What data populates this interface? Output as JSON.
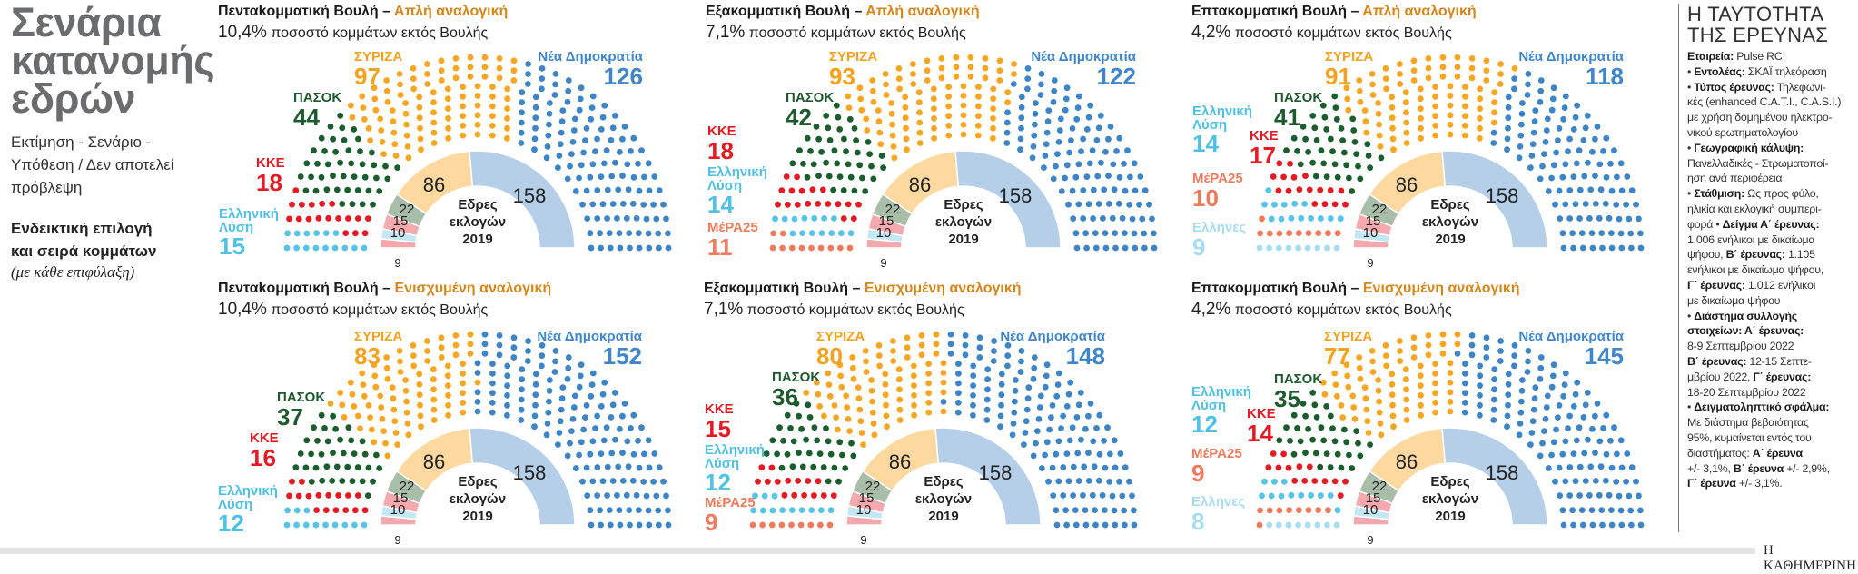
{
  "intro": {
    "title_lines": [
      "Σενάρια",
      "κατανομής",
      "εδρών"
    ],
    "disclaimer_lines": [
      "Εκτίμηση - Σενάριο -",
      "Υπόθεση / Δεν αποτελεί",
      "πρόβλεψη"
    ],
    "note_lines": [
      "Ενδεικτική επιλογή",
      "και σειρά κομμάτων"
    ],
    "caveat": "(με κάθε επιφύλαξη)"
  },
  "party_colors": {
    "ellines": "#a8dcf1",
    "mera25": "#f07a5c",
    "el": "#56c3e8",
    "kke": "#e41b23",
    "pasok": "#1b5e2e",
    "syriza": "#f6a623",
    "nd": "#3d85c6"
  },
  "label_colors": {
    "ellines": "#a8dcf1",
    "mera25": "#f07a5c",
    "el": "#4fc0e6",
    "kke": "#e41b23",
    "pasok": "#1d5a2d",
    "syriza": "#f4a21e",
    "nd": "#3f86cc"
  },
  "reference_2019": {
    "center_lines": [
      "Εδρες",
      "εκλογών",
      "2019"
    ],
    "segments": [
      {
        "seats": 9,
        "color": "#f3a8ad"
      },
      {
        "seats": 10,
        "color": "#c3e7f5"
      },
      {
        "seats": 15,
        "color": "#f4a9ae"
      },
      {
        "seats": 22,
        "color": "#a9bea8"
      },
      {
        "seats": 86,
        "color": "#fdd9a0"
      },
      {
        "seats": 158,
        "color": "#b5cfe9"
      }
    ]
  },
  "chart_data": [
    {
      "type": "parliament",
      "title": "Πενταkομματική Βουλή",
      "method": "Απλή αναλογική",
      "pct": "10,4%",
      "pct_text": "ποσοστό κομμάτων εκτός Βουλής",
      "parties": [
        {
          "key": "el",
          "name": "Ελληνική Λύση",
          "seats": 15
        },
        {
          "key": "kke",
          "name": "ΚΚΕ",
          "seats": 18
        },
        {
          "key": "pasok",
          "name": "ΠΑΣΟΚ",
          "seats": 44
        },
        {
          "key": "syriza",
          "name": "ΣΥΡΙΖΑ",
          "seats": 97
        },
        {
          "key": "nd",
          "name": "Νέα Δημοκρατία",
          "seats": 126
        }
      ]
    },
    {
      "type": "parliament",
      "title": "Εξακομματική Βουλή",
      "method": "Απλή αναλογική",
      "pct": "7,1%",
      "pct_text": "ποσοστό κομμάτων εκτός Βουλής",
      "parties": [
        {
          "key": "mera25",
          "name": "ΜέΡΑ25",
          "seats": 11
        },
        {
          "key": "el",
          "name": "Ελληνική Λύση",
          "seats": 14
        },
        {
          "key": "kke",
          "name": "ΚΚΕ",
          "seats": 18
        },
        {
          "key": "pasok",
          "name": "ΠΑΣΟΚ",
          "seats": 42
        },
        {
          "key": "syriza",
          "name": "ΣΥΡΙΖΑ",
          "seats": 93
        },
        {
          "key": "nd",
          "name": "Νέα Δημοκρατία",
          "seats": 122
        }
      ]
    },
    {
      "type": "parliament",
      "title": "Επτακομματική Βουλή",
      "method": "Απλή αναλογική",
      "pct": "4,2%",
      "pct_text": "ποσοστό κομμάτων εκτός Βουλής",
      "parties": [
        {
          "key": "ellines",
          "name": "Ελληνες",
          "seats": 9
        },
        {
          "key": "mera25",
          "name": "ΜέΡΑ25",
          "seats": 10
        },
        {
          "key": "el",
          "name": "Ελληνική Λύση",
          "seats": 14
        },
        {
          "key": "kke",
          "name": "ΚΚΕ",
          "seats": 17
        },
        {
          "key": "pasok",
          "name": "ΠΑΣΟΚ",
          "seats": 41
        },
        {
          "key": "syriza",
          "name": "ΣΥΡΙΖΑ",
          "seats": 91
        },
        {
          "key": "nd",
          "name": "Νέα Δημοκρατία",
          "seats": 118
        }
      ]
    },
    {
      "type": "parliament",
      "title": "Πενταkομματική Βουλή",
      "method": "Ενισχυμένη αναλογική",
      "pct": "10,4%",
      "pct_text": "ποσοστό κομμάτων εκτός Βουλής",
      "parties": [
        {
          "key": "el",
          "name": "Ελληνική Λύση",
          "seats": 12
        },
        {
          "key": "kke",
          "name": "ΚΚΕ",
          "seats": 16
        },
        {
          "key": "pasok",
          "name": "ΠΑΣΟΚ",
          "seats": 37
        },
        {
          "key": "syriza",
          "name": "ΣΥΡΙΖΑ",
          "seats": 83
        },
        {
          "key": "nd",
          "name": "Νέα Δημοκρατία",
          "seats": 152
        }
      ]
    },
    {
      "type": "parliament",
      "title": "Εξακομματική Βουλή",
      "method": "Ενισχυμένη αναλογική",
      "pct": "7,1%",
      "pct_text": "ποσοστό κομμάτων εκτός Βουλής",
      "parties": [
        {
          "key": "mera25",
          "name": "ΜέΡΑ25",
          "seats": 9
        },
        {
          "key": "el",
          "name": "Ελληνική Λύση",
          "seats": 12
        },
        {
          "key": "kke",
          "name": "ΚΚΕ",
          "seats": 15
        },
        {
          "key": "pasok",
          "name": "ΠΑΣΟΚ",
          "seats": 36
        },
        {
          "key": "syriza",
          "name": "ΣΥΡΙΖΑ",
          "seats": 80
        },
        {
          "key": "nd",
          "name": "Νέα Δημοκρατία",
          "seats": 148
        }
      ]
    },
    {
      "type": "parliament",
      "title": "Επτακομματική Βουλή",
      "method": "Ενισχυμένη αναλογική",
      "pct": "4,2%",
      "pct_text": "ποσοστό κομμάτων εκτός Βουλής",
      "parties": [
        {
          "key": "ellines",
          "name": "Ελληνες",
          "seats": 8
        },
        {
          "key": "mera25",
          "name": "ΜέΡΑ25",
          "seats": 9
        },
        {
          "key": "el",
          "name": "Ελληνική Λύση",
          "seats": 12
        },
        {
          "key": "kke",
          "name": "ΚΚΕ",
          "seats": 14
        },
        {
          "key": "pasok",
          "name": "ΠΑΣΟΚ",
          "seats": 35
        },
        {
          "key": "syriza",
          "name": "ΣΥΡΙΖΑ",
          "seats": 77
        },
        {
          "key": "nd",
          "name": "Νέα Δημοκρατία",
          "seats": 145
        }
      ]
    }
  ],
  "survey": {
    "title_lines": [
      "Η ΤΑΥΤΟΤΗΤΑ",
      "ΤΗΣ ΕΡΕΥΝΑΣ"
    ],
    "lines": [
      [
        {
          "b": true,
          "t": "Εταιρεία:"
        },
        {
          "t": " Pulse RC"
        }
      ],
      [
        {
          "t": "• "
        },
        {
          "b": true,
          "t": "Εντολέας:"
        },
        {
          "t": " ΣΚΑΪ τηλεόραση"
        }
      ],
      [
        {
          "t": "• "
        },
        {
          "b": true,
          "t": "Τύπος έρευνας:"
        },
        {
          "t": " Τηλεφωνι-"
        }
      ],
      [
        {
          "t": "κές (enhanced C.A.T.I., C.A.S.I.)"
        }
      ],
      [
        {
          "t": "με χρήση δομημένου ηλεκτρο-"
        }
      ],
      [
        {
          "t": "νικού ερωτηματολογίου"
        }
      ],
      [
        {
          "t": "• "
        },
        {
          "b": true,
          "t": "Γεωγραφική κάλυψη:"
        }
      ],
      [
        {
          "t": "Πανελλαδικές - Στρωματοποί-"
        }
      ],
      [
        {
          "t": "ηση ανά περιφέρεια"
        }
      ],
      [
        {
          "t": "• "
        },
        {
          "b": true,
          "t": "Στάθμιση:"
        },
        {
          "t": " Ως προς φύλο,"
        }
      ],
      [
        {
          "t": "ηλικία και εκλογική συμπερι-"
        }
      ],
      [
        {
          "t": "φορά • "
        },
        {
          "b": true,
          "t": "Δείγμα Α΄ έρευνας:"
        }
      ],
      [
        {
          "t": "1.006 ενήλικοι με δικαίωμα"
        }
      ],
      [
        {
          "t": "ψήφου, "
        },
        {
          "b": true,
          "t": "Β΄ έρευνας:"
        },
        {
          "t": " 1.105"
        }
      ],
      [
        {
          "t": "ενήλικοι με δικαίωμα ψήφου,"
        }
      ],
      [
        {
          "b": true,
          "t": "Γ΄ έρευνας:"
        },
        {
          "t": " 1.012 ενήλικοι"
        }
      ],
      [
        {
          "t": "με δικαίωμα ψήφου"
        }
      ],
      [
        {
          "t": "• "
        },
        {
          "b": true,
          "t": "Διάστημα συλλογής"
        }
      ],
      [
        {
          "b": true,
          "t": "στοιχείων: Α΄ έρευνας:"
        }
      ],
      [
        {
          "t": "8-9 Σεπτεμβρίου 2022"
        }
      ],
      [
        {
          "b": true,
          "t": "Β΄ έρευνας:"
        },
        {
          "t": " 12-15 Σεπτε-"
        }
      ],
      [
        {
          "t": "μβρίου 2022, "
        },
        {
          "b": true,
          "t": "Γ΄ έρευνας:"
        }
      ],
      [
        {
          "t": "18-20 Σεπτεμβρίου 2022"
        }
      ],
      [
        {
          "t": "• "
        },
        {
          "b": true,
          "t": "Δειγματοληπτικό σφάλμα:"
        }
      ],
      [
        {
          "t": "Με διάστημα βεβαιότητας"
        }
      ],
      [
        {
          "t": "95%, κυμαίνεται εντός του"
        }
      ],
      [
        {
          "t": "διαστήματος: "
        },
        {
          "b": true,
          "t": "Α΄ έρευνα"
        }
      ],
      [
        {
          "t": "+/- 3,1%, "
        },
        {
          "b": true,
          "t": "Β΄ έρευνα"
        },
        {
          "t": " +/- 2,9%,"
        }
      ],
      [
        {
          "b": true,
          "t": "Γ΄ έρευνα"
        },
        {
          "t": " +/- 3,1%."
        }
      ]
    ]
  },
  "footer": {
    "brand": "Η ΚΑΘΗΜΕΡΙΝΗ"
  }
}
